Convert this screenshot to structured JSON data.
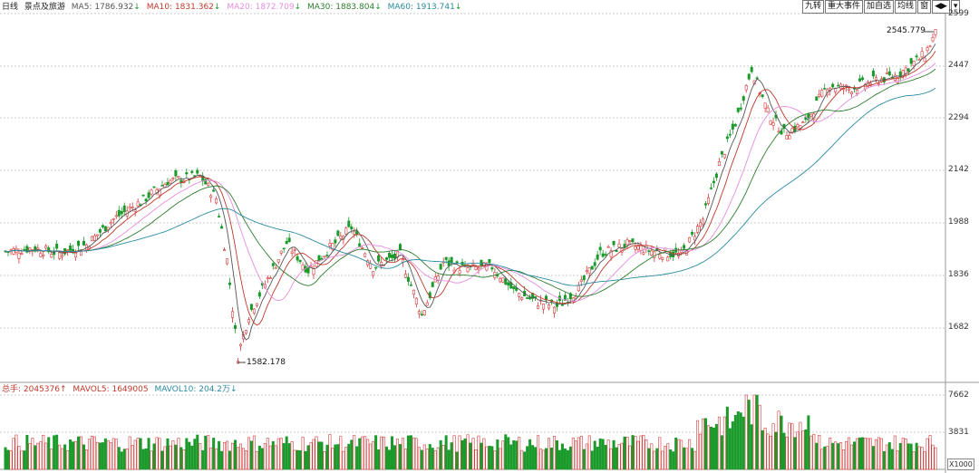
{
  "ma_legend": {
    "chart_type": "日线",
    "name": "景点及旅游",
    "ma5": {
      "label": "MA5: 1786.932",
      "color": "#555555"
    },
    "ma10": {
      "label": "MA10: 1831.362",
      "color": "#c0392b"
    },
    "ma20": {
      "label": "MA20: 1872.709",
      "color": "#e58ee0"
    },
    "ma30": {
      "label": "MA30: 1883.804",
      "color": "#2f7d2f"
    },
    "ma60": {
      "label": "MA60: 1913.741",
      "color": "#2b8aa0"
    }
  },
  "vol_legend": {
    "total": "总手: 2045376",
    "mavol5": "MAVOL5: 1649005",
    "mavol10": "MAVOL10: 204.2万"
  },
  "toolbar": {
    "b1": "九转",
    "b2": "重大事件",
    "b3": "加自选",
    "b4": "均线",
    "b5": "窗",
    "b6": "◀▶",
    "b7": "▾"
  },
  "price_axis": [
    "2599",
    "2447",
    "2294",
    "2142",
    "1988",
    "1836",
    "1682"
  ],
  "volume_axis": [
    "7662",
    "3831"
  ],
  "volume_unit": "X1000",
  "annotations": {
    "high": "2545.779",
    "low": "1582.178"
  },
  "colors": {
    "up": "#d43b3b",
    "down": "#1a9a2a"
  },
  "chart_data": {
    "type": "candlestick",
    "y_axis_ticks": [
      2599,
      2447,
      2294,
      2142,
      1988,
      1836,
      1682
    ],
    "volume_axis_ticks": [
      7662,
      3831
    ],
    "max_high": 2545.779,
    "min_low": 1582.178
  }
}
